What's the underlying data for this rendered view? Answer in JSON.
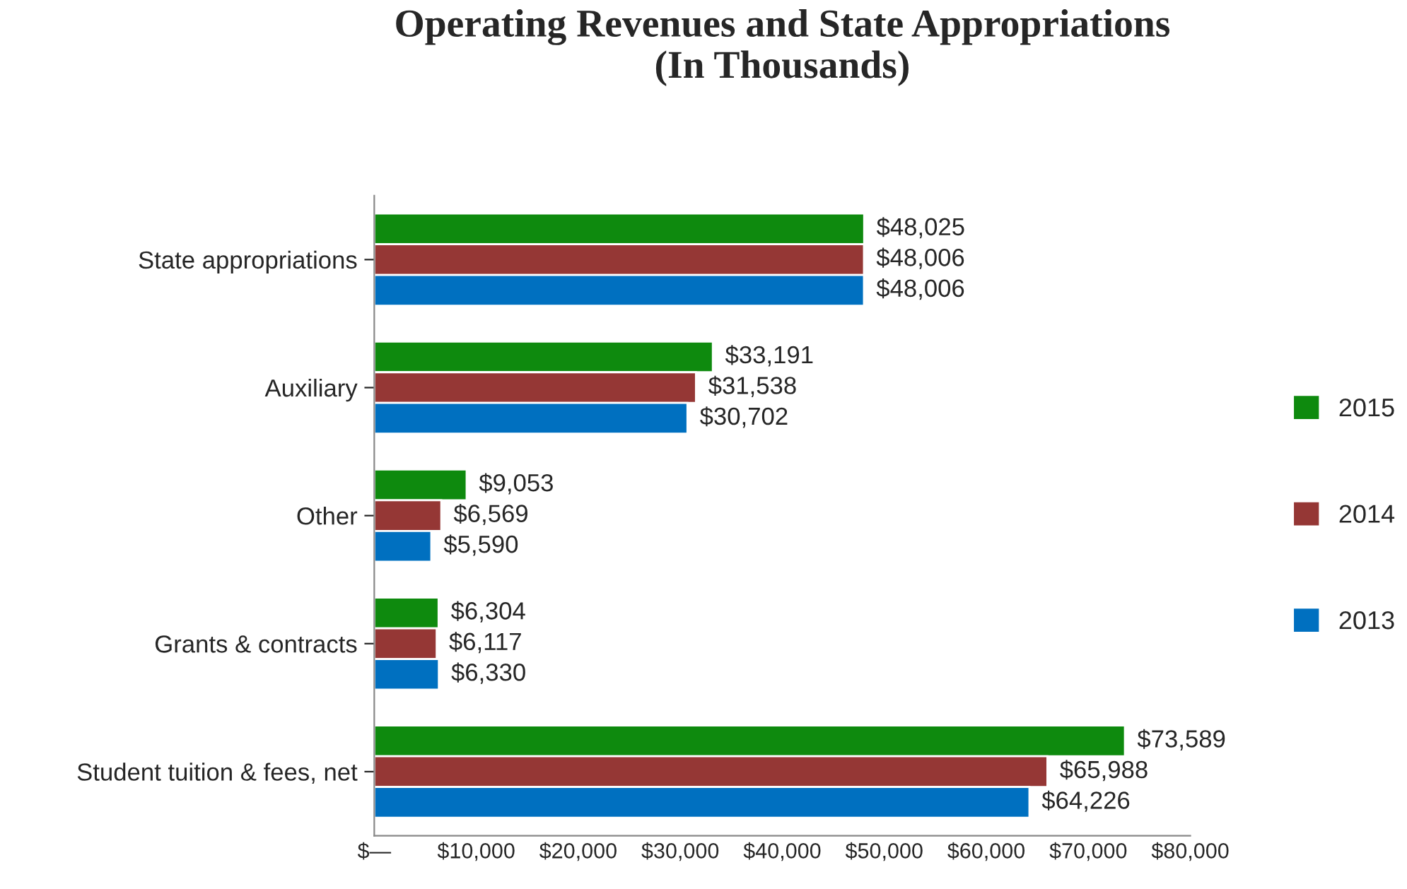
{
  "chart_data": {
    "type": "bar",
    "orientation": "horizontal",
    "title": "Operating Revenues and State Appropriations\n(In Thousands)",
    "categories": [
      "State appropriations",
      "Auxiliary",
      "Other",
      "Grants & contracts",
      "Student tuition & fees, net"
    ],
    "series": [
      {
        "name": "2015",
        "color": "#0e8a0e",
        "values": [
          48025,
          33191,
          9053,
          6304,
          73589
        ],
        "value_labels": [
          "$48,025",
          "$33,191",
          "$9,053",
          "$6,304",
          "$73,589"
        ]
      },
      {
        "name": "2014",
        "color": "#953735",
        "values": [
          48006,
          31538,
          6569,
          6117,
          65988
        ],
        "value_labels": [
          "$48,006",
          "$31,538",
          "$6,569",
          "$6,117",
          "$65,988"
        ]
      },
      {
        "name": "2013",
        "color": "#0070c0",
        "values": [
          48006,
          30702,
          5590,
          6330,
          64226
        ],
        "value_labels": [
          "$48,006",
          "$30,702",
          "$5,590",
          "$6,330",
          "$64,226"
        ]
      }
    ],
    "xlim": [
      0,
      80000
    ],
    "xticks": [
      {
        "value": 0,
        "label": "$—"
      },
      {
        "value": 10000,
        "label": "$10,000"
      },
      {
        "value": 20000,
        "label": "$20,000"
      },
      {
        "value": 30000,
        "label": "$30,000"
      },
      {
        "value": 40000,
        "label": "$40,000"
      },
      {
        "value": 50000,
        "label": "$50,000"
      },
      {
        "value": 60000,
        "label": "$60,000"
      },
      {
        "value": 70000,
        "label": "$70,000"
      },
      {
        "value": 80000,
        "label": "$80,000"
      }
    ],
    "legend": "right",
    "grid": false
  }
}
